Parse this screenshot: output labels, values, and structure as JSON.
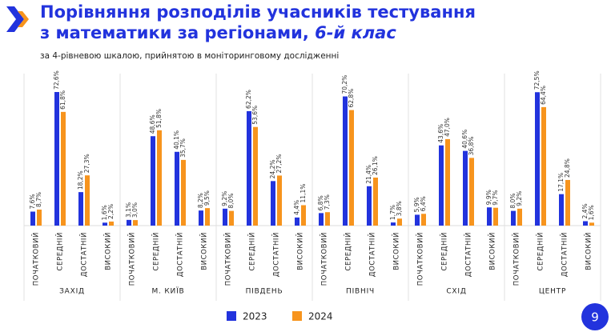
{
  "chart_data": {
    "type": "bar",
    "title": [
      "Порівняння розподілів учасників тестування",
      "з математики за регіонами,",
      "6-й клас"
    ],
    "subtitle": "за 4-рівневою шкалою, прийнятою в моніторинговому дослідженні",
    "groups": [
      "ЗАХІД",
      "М. КИЇВ",
      "ПІВДЕНЬ",
      "ПІВНІЧ",
      "СХІД",
      "ЦЕНТР"
    ],
    "categories": [
      "ПОЧАТКОВИЙ",
      "СЕРЕДНІЙ",
      "ДОСТАТНІЙ",
      "ВИСОКИЙ",
      "ПОЧАТКОВИЙ",
      "СЕРЕДНІЙ",
      "ДОСТАТНІЙ",
      "ВИСОКИЙ",
      "ПОЧАТКОВИЙ",
      "СЕРЕДНІЙ",
      "ДОСТАТНІЙ",
      "ВИСОКИЙ",
      "ПОЧАТКОВИЙ",
      "СЕРЕДНІЙ",
      "ДОСТАТНІЙ",
      "ВИСОКИЙ",
      "ПОЧАТКОВИЙ",
      "СЕРЕДНІЙ",
      "ДОСТАТНІЙ",
      "ВИСОКИЙ",
      "ПОЧАТКОВИЙ",
      "СЕРЕДНІЙ",
      "ДОСТАТНІЙ",
      "ВИСОКИЙ"
    ],
    "series": [
      {
        "name": "2023",
        "color": "#2233dd",
        "values": [
          7.6,
          72.6,
          18.2,
          1.6,
          3.1,
          48.6,
          40.1,
          8.2,
          9.2,
          62.2,
          24.2,
          4.4,
          6.8,
          70.2,
          21.4,
          1.7,
          5.9,
          43.6,
          40.6,
          9.9,
          8.0,
          72.5,
          17.1,
          2.4
        ],
        "value_labels": [
          "7,6%",
          "72,6%",
          "18,2%",
          "1,6%",
          "3,1%",
          "48,6%",
          "40,1%",
          "8,2%",
          "9,2%",
          "62,2%",
          "24,2%",
          "4,4%",
          "6,8%",
          "70,2%",
          "21,4%",
          "1,7%",
          "5,9%",
          "43,6%",
          "40,6%",
          "9,9%",
          "8,0%",
          "72,5%",
          "17,1%",
          "2,4%"
        ]
      },
      {
        "name": "2024",
        "color": "#f7941d",
        "values": [
          8.7,
          61.8,
          27.3,
          2.2,
          3.0,
          51.8,
          35.7,
          9.5,
          8.0,
          53.6,
          27.2,
          11.1,
          7.3,
          62.8,
          26.1,
          3.8,
          6.4,
          47.0,
          36.8,
          9.7,
          9.2,
          64.4,
          24.8,
          1.6
        ],
        "value_labels": [
          "8,7%",
          "61,8%",
          "27,3%",
          "2,2%",
          "3,0%",
          "51,8%",
          "35,7%",
          "9,5%",
          "8,0%",
          "53,6%",
          "27,2%",
          "11,1%",
          "7,3%",
          "62,8%",
          "26,1%",
          "3,8%",
          "6,4%",
          "47,0%",
          "36,8%",
          "9,7%",
          "9,2%",
          "64,4%",
          "24,8%",
          "1,6%"
        ]
      }
    ]
  },
  "page_number": "9"
}
